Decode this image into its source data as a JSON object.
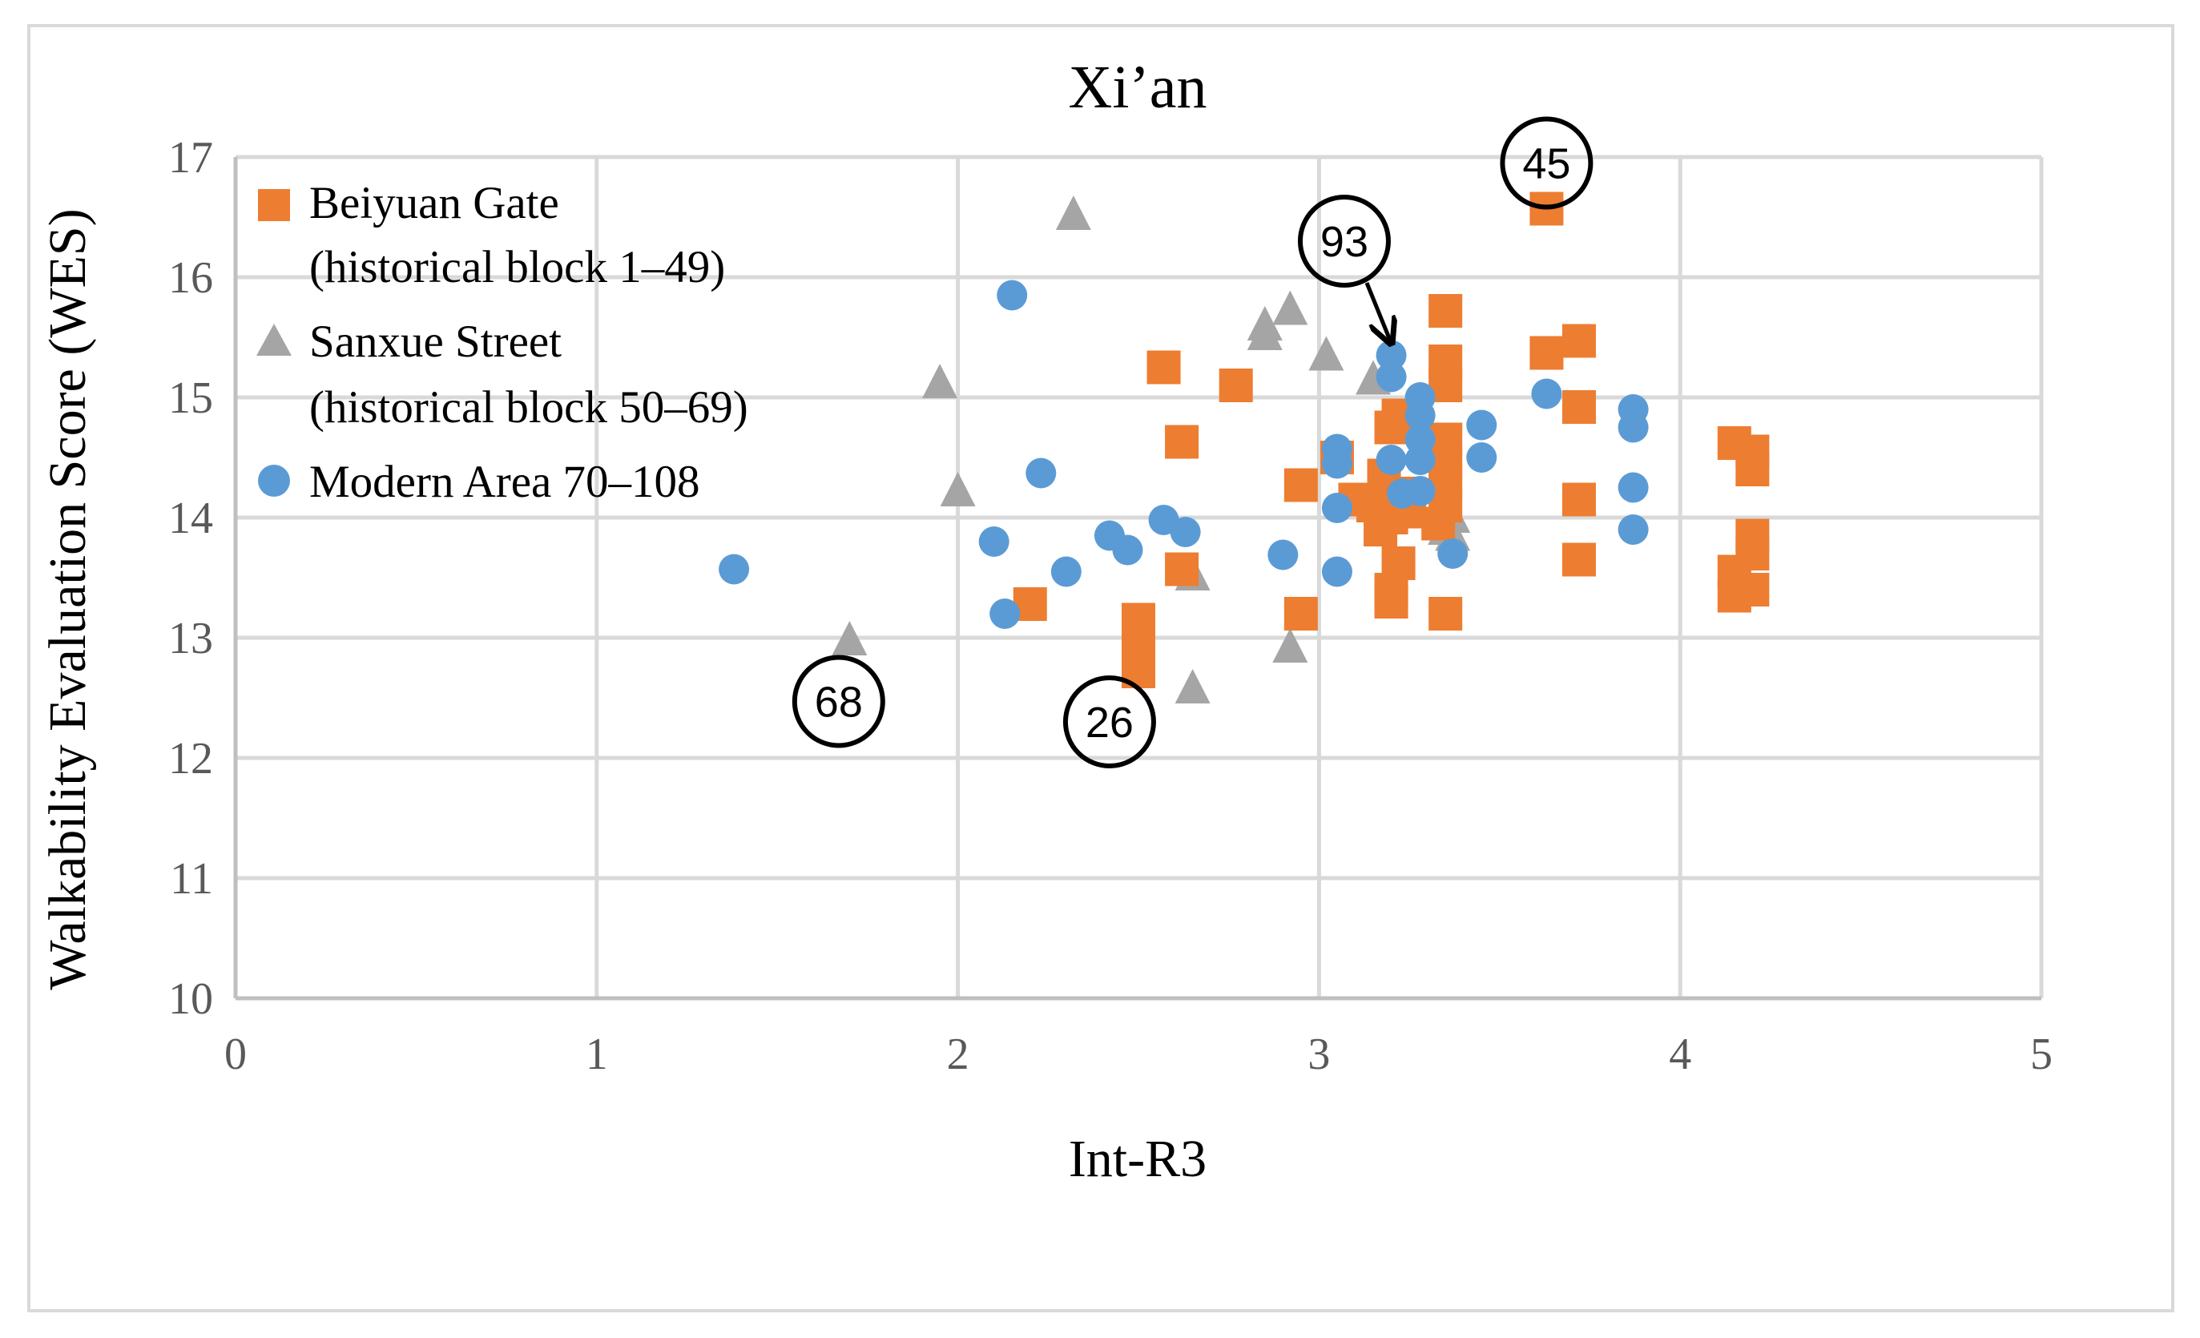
{
  "chart_data": {
    "type": "scatter",
    "title": "Xi’an",
    "xlabel": "Int-R3",
    "ylabel": "Walkability Evaluation Score (WES)",
    "xlim": [
      0,
      5
    ],
    "ylim": [
      10,
      17
    ],
    "xticks": [
      "0",
      "1",
      "2",
      "3",
      "4",
      "5"
    ],
    "yticks": [
      "10",
      "11",
      "12",
      "13",
      "14",
      "15",
      "16",
      "17"
    ],
    "grid": true,
    "legend_position": "top-left",
    "colors": {
      "Beiyuan Gate": "#ED7D31",
      "Sanxue Street": "#A5A5A5",
      "Modern Area": "#5B9BD5",
      "grid": "#d9d9d9",
      "axis": "#bfbfbf"
    },
    "series": [
      {
        "name": "Beiyuan Gate",
        "label_lines": [
          "Beiyuan Gate",
          "(historical block 1–49)"
        ],
        "marker": "square",
        "points": [
          [
            2.2,
            13.28
          ],
          [
            2.5,
            13.15
          ],
          [
            2.5,
            13.0
          ],
          [
            2.5,
            12.72
          ],
          [
            2.57,
            15.25
          ],
          [
            2.62,
            14.63
          ],
          [
            2.62,
            13.57
          ],
          [
            2.77,
            15.1
          ],
          [
            2.95,
            14.27
          ],
          [
            2.95,
            13.2
          ],
          [
            3.05,
            14.5
          ],
          [
            3.1,
            14.15
          ],
          [
            3.15,
            14.1
          ],
          [
            3.17,
            13.9
          ],
          [
            3.18,
            14.35
          ],
          [
            3.2,
            14.75
          ],
          [
            3.22,
            14.85
          ],
          [
            3.2,
            14.0
          ],
          [
            3.22,
            13.62
          ],
          [
            3.2,
            13.4
          ],
          [
            3.2,
            13.3
          ],
          [
            3.23,
            14.2
          ],
          [
            3.25,
            14.05
          ],
          [
            3.35,
            15.72
          ],
          [
            3.35,
            15.3
          ],
          [
            3.35,
            15.1
          ],
          [
            3.35,
            14.65
          ],
          [
            3.35,
            14.45
          ],
          [
            3.35,
            14.3
          ],
          [
            3.35,
            14.1
          ],
          [
            3.33,
            13.95
          ],
          [
            3.35,
            13.2
          ],
          [
            3.63,
            16.57
          ],
          [
            3.63,
            15.37
          ],
          [
            3.72,
            15.47
          ],
          [
            3.72,
            14.92
          ],
          [
            3.72,
            14.15
          ],
          [
            3.72,
            13.65
          ],
          [
            4.15,
            14.62
          ],
          [
            4.2,
            14.55
          ],
          [
            4.2,
            14.4
          ],
          [
            4.2,
            13.85
          ],
          [
            4.2,
            13.7
          ],
          [
            4.15,
            13.55
          ],
          [
            4.2,
            13.4
          ],
          [
            4.15,
            13.35
          ]
        ]
      },
      {
        "name": "Sanxue Street",
        "label_lines": [
          "Sanxue Street",
          "(historical block 50–69)"
        ],
        "marker": "triangle",
        "points": [
          [
            1.7,
            12.98
          ],
          [
            1.95,
            15.12
          ],
          [
            2.0,
            14.22
          ],
          [
            2.32,
            16.52
          ],
          [
            2.65,
            13.52
          ],
          [
            2.65,
            12.58
          ],
          [
            2.85,
            15.6
          ],
          [
            2.85,
            15.52
          ],
          [
            2.92,
            15.73
          ],
          [
            2.92,
            12.92
          ],
          [
            3.02,
            15.35
          ],
          [
            3.15,
            15.15
          ],
          [
            3.37,
            14.0
          ],
          [
            3.35,
            13.9
          ],
          [
            3.37,
            13.85
          ]
        ]
      },
      {
        "name": "Modern Area",
        "label_lines": [
          "Modern Area 70–108"
        ],
        "marker": "circle",
        "points": [
          [
            1.38,
            13.57
          ],
          [
            2.1,
            13.8
          ],
          [
            2.13,
            13.2
          ],
          [
            2.15,
            15.85
          ],
          [
            2.23,
            14.37
          ],
          [
            2.3,
            13.55
          ],
          [
            2.42,
            13.85
          ],
          [
            2.47,
            13.73
          ],
          [
            2.57,
            13.98
          ],
          [
            2.63,
            13.88
          ],
          [
            2.9,
            13.69
          ],
          [
            3.05,
            14.57
          ],
          [
            3.05,
            14.45
          ],
          [
            3.05,
            14.08
          ],
          [
            3.05,
            13.55
          ],
          [
            3.2,
            15.35
          ],
          [
            3.2,
            15.17
          ],
          [
            3.2,
            14.48
          ],
          [
            3.23,
            14.2
          ],
          [
            3.28,
            15.0
          ],
          [
            3.28,
            14.85
          ],
          [
            3.28,
            14.65
          ],
          [
            3.28,
            14.48
          ],
          [
            3.28,
            14.22
          ],
          [
            3.37,
            13.7
          ],
          [
            3.45,
            14.77
          ],
          [
            3.45,
            14.5
          ],
          [
            3.63,
            15.03
          ],
          [
            3.87,
            14.9
          ],
          [
            3.87,
            14.75
          ],
          [
            3.87,
            14.25
          ],
          [
            3.87,
            13.9
          ]
        ]
      }
    ],
    "annotations": [
      {
        "text": "45",
        "x": 3.63,
        "y": 16.95,
        "shape": "circle"
      },
      {
        "text": "93",
        "x": 3.07,
        "y": 16.3,
        "shape": "circle",
        "arrow_to": [
          3.2,
          15.45
        ]
      },
      {
        "text": "68",
        "x": 1.67,
        "y": 12.47,
        "shape": "circle"
      },
      {
        "text": "26",
        "x": 2.42,
        "y": 12.3,
        "shape": "circle"
      }
    ]
  }
}
